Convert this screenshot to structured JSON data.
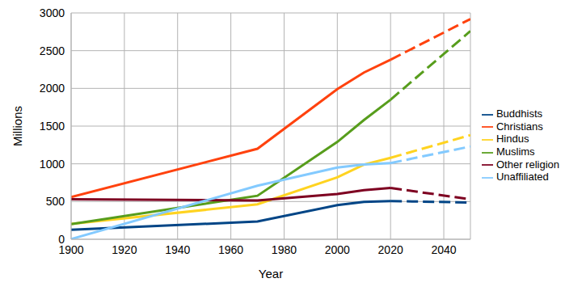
{
  "chart_data": {
    "type": "line",
    "x_label": "Year",
    "y_label": "Millions",
    "x": [
      1900,
      1970,
      2000,
      2010,
      2020,
      2050
    ],
    "projection_from": 2020,
    "xlim": [
      1900,
      2050
    ],
    "xticks": [
      1900,
      1920,
      1940,
      1960,
      1980,
      2000,
      2020,
      2040
    ],
    "ylim": [
      0,
      3000
    ],
    "yticks": [
      0,
      500,
      1000,
      1500,
      2000,
      2500,
      3000
    ],
    "grid": true,
    "legend": "right",
    "series": [
      {
        "name": "Buddhists",
        "color": "#004586",
        "values": [
          127,
          235,
          452,
          495,
          507,
          487
        ]
      },
      {
        "name": "Christians",
        "color": "#ff420e",
        "values": [
          558,
          1200,
          1990,
          2210,
          2380,
          2920
        ]
      },
      {
        "name": "Hindus",
        "color": "#ffd320",
        "values": [
          203,
          463,
          820,
          990,
          1080,
          1380
        ]
      },
      {
        "name": "Muslims",
        "color": "#579d1c",
        "values": [
          200,
          577,
          1290,
          1580,
          1850,
          2760
        ]
      },
      {
        "name": "Other religion",
        "color": "#7e0021",
        "values": [
          530,
          515,
          600,
          650,
          680,
          530
        ]
      },
      {
        "name": "Unaffiliated",
        "color": "#83caff",
        "values": [
          3,
          710,
          950,
          990,
          1010,
          1230
        ]
      }
    ]
  }
}
